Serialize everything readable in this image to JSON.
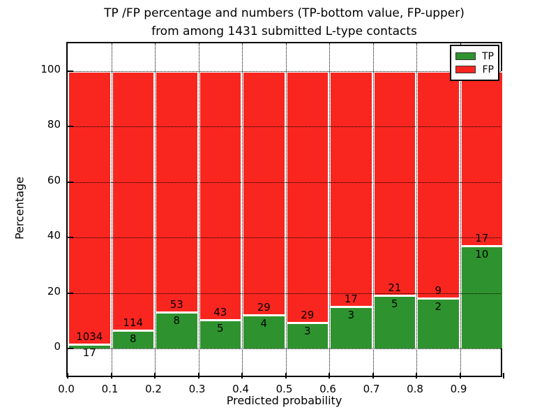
{
  "figure": {
    "title_line1": "TP /FP percentage and numbers (TP-bottom value, FP-upper)",
    "title_line2": "from among 1431 submitted L-type contacts",
    "xlabel": "Predicted probability",
    "ylabel": "Percentage"
  },
  "chart_data": {
    "type": "bar",
    "stacked": true,
    "normalized_to_percent": true,
    "title": "TP /FP percentage and numbers (TP-bottom value, FP-upper) from among 1431 submitted L-type contacts",
    "xlabel": "Predicted probability",
    "ylabel": "Percentage",
    "bin_width": 0.1,
    "bin_starts": [
      0.0,
      0.1,
      0.2,
      0.3,
      0.4,
      0.5,
      0.6,
      0.7,
      0.8,
      0.9
    ],
    "series": [
      {
        "name": "TP",
        "color": "#2e932e",
        "counts": [
          17,
          8,
          8,
          5,
          4,
          3,
          3,
          5,
          2,
          10
        ]
      },
      {
        "name": "FP",
        "color": "#f92620",
        "counts": [
          1034,
          114,
          53,
          43,
          29,
          29,
          17,
          21,
          9,
          17
        ]
      }
    ],
    "total_contacts": 1431,
    "x_tick_labels": [
      "0.0",
      "0.1",
      "0.2",
      "0.3",
      "0.4",
      "0.5",
      "0.6",
      "0.7",
      "0.8",
      "0.9"
    ],
    "y_ticks": [
      0,
      20,
      40,
      60,
      80,
      100
    ],
    "xlim": [
      0.0,
      1.0
    ],
    "ylim": [
      -10.8,
      110.1
    ],
    "grid": "dotted",
    "legend": {
      "position": "upper right",
      "entries": [
        "TP",
        "FP"
      ]
    }
  }
}
